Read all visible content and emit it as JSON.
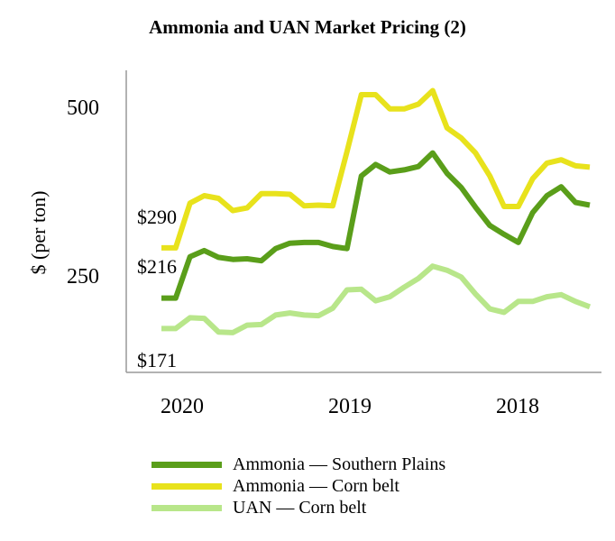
{
  "chart_data": {
    "type": "line",
    "title": "Ammonia and UAN Market Pricing (2)",
    "ylabel": "$ (per ton)",
    "xlabel": "",
    "y_ticks": [
      500,
      250
    ],
    "ylim": [
      110,
      540
    ],
    "x_ticks": [
      {
        "label": "2020",
        "x": 3.5
      },
      {
        "label": "2019",
        "x": 15.5
      },
      {
        "label": "2018",
        "x": 27.5
      }
    ],
    "xlim": [
      -0.5,
      33.5
    ],
    "grid": false,
    "legend_position": "bottom",
    "series": [
      {
        "name": "Ammonia — Southern Plains",
        "color": "#5a9e1a",
        "values": [
          216,
          216,
          277,
          286,
          276,
          273,
          274,
          271,
          289,
          297,
          298,
          298,
          292,
          289,
          396,
          413,
          402,
          405,
          410,
          430,
          400,
          379,
          350,
          323,
          310,
          298,
          342,
          367,
          380,
          357,
          353
        ]
      },
      {
        "name": "Ammonia — Corn belt",
        "color": "#e8e21c",
        "values": [
          290,
          290,
          356,
          367,
          363,
          345,
          349,
          370,
          370,
          369,
          352,
          353,
          352,
          432,
          516,
          516,
          495,
          495,
          502,
          522,
          467,
          452,
          430,
          396,
          351,
          351,
          392,
          415,
          420,
          411,
          409
        ]
      },
      {
        "name": "UAN — Corn belt",
        "color": "#b8e68a",
        "values": [
          171,
          171,
          187,
          186,
          166,
          165,
          176,
          177,
          191,
          194,
          191,
          190,
          201,
          228,
          229,
          212,
          218,
          232,
          245,
          263,
          257,
          247,
          222,
          200,
          195,
          211,
          211,
          218,
          221,
          211,
          203
        ]
      }
    ],
    "annotations": [
      "$290",
      "$216",
      "$171"
    ]
  },
  "legend": [
    {
      "label": "Ammonia — Southern Plains",
      "color": "#5a9e1a"
    },
    {
      "label": "Ammonia — Corn belt",
      "color": "#e8e21c"
    },
    {
      "label": "UAN — Corn belt",
      "color": "#b8e68a"
    }
  ]
}
